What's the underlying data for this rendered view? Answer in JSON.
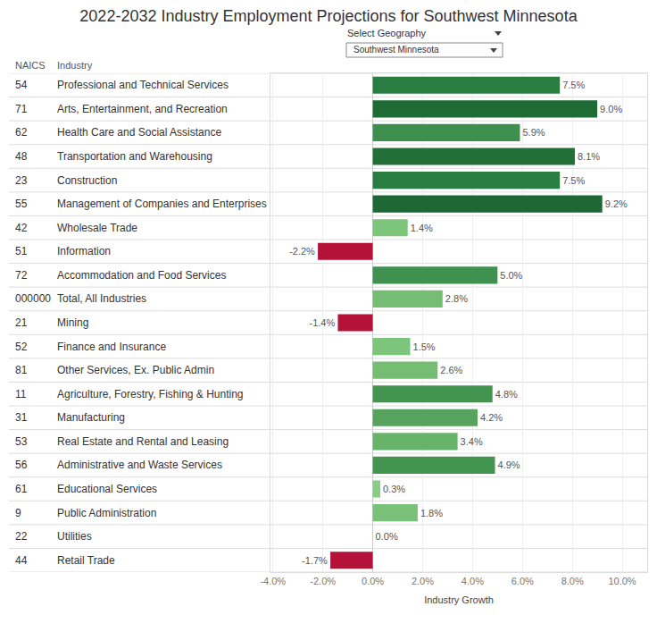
{
  "chart_data": {
    "type": "bar",
    "title": "2022-2032 Industry Employment Projections for Southwest Minnesota",
    "dropdown": {
      "label": "Select Geography",
      "value": "Southwest Minnesota"
    },
    "column_headers": [
      "NAICS",
      "Industry"
    ],
    "naics": [
      "54",
      "71",
      "62",
      "48",
      "23",
      "55",
      "42",
      "51",
      "72",
      "000000",
      "21",
      "52",
      "81",
      "11",
      "31",
      "53",
      "56",
      "61",
      "9",
      "22",
      "44"
    ],
    "categories": [
      "Professional and Technical Services",
      "Arts, Entertainment, and Recreation",
      "Health Care and Social Assistance",
      "Transportation and Warehousing",
      "Construction",
      "Management of Companies and Enterprises",
      "Wholesale Trade",
      "Information",
      "Accommodation and Food Services",
      "Total, All Industries",
      "Mining",
      "Finance and Insurance",
      "Other Services, Ex. Public Admin",
      "Agriculture, Forestry, Fishing & Hunting",
      "Manufacturing",
      "Real Estate and Rental and Leasing",
      "Administrative and Waste Services",
      "Educational Services",
      "Public Administration",
      "Utilities",
      "Retail Trade"
    ],
    "values": [
      7.5,
      9.0,
      5.9,
      8.1,
      7.5,
      9.2,
      1.4,
      -2.2,
      5.0,
      2.8,
      -1.4,
      1.5,
      2.6,
      4.8,
      4.2,
      3.4,
      4.9,
      0.3,
      1.8,
      0.0,
      -1.7
    ],
    "value_labels": [
      "7.5%",
      "9.0%",
      "5.9%",
      "8.1%",
      "7.5%",
      "9.2%",
      "1.4%",
      "-2.2%",
      "5.0%",
      "2.8%",
      "-1.4%",
      "1.5%",
      "2.6%",
      "4.8%",
      "4.2%",
      "3.4%",
      "4.9%",
      "0.3%",
      "1.8%",
      "0.0%",
      "-1.7%"
    ],
    "colors": [
      "#2a7d40",
      "#1f6b36",
      "#3d8f4e",
      "#226f38",
      "#2a7d40",
      "#1d6834",
      "#7cc57b",
      "#b5123a",
      "#3f9150",
      "#74bd73",
      "#b5123a",
      "#7cc57b",
      "#74bd73",
      "#43944f",
      "#57a25d",
      "#68b36a",
      "#43944f",
      "#88cc85",
      "#7ac279",
      "#88cc85",
      "#b5123a"
    ],
    "orientation": "horizontal",
    "data_labels": true,
    "grid": true,
    "x_label": "Industry Growth",
    "xlim": [
      -4.1,
      11
    ],
    "xticks": [
      {
        "value": -4,
        "label": "-4.0%"
      },
      {
        "value": -2,
        "label": "-2.0%"
      },
      {
        "value": 0,
        "label": "0.0%"
      },
      {
        "value": 2,
        "label": "2.0%"
      },
      {
        "value": 4,
        "label": "4.0%"
      },
      {
        "value": 6,
        "label": "6.0%"
      },
      {
        "value": 8,
        "label": "8.0%"
      },
      {
        "value": 10,
        "label": "10.0%"
      }
    ]
  }
}
